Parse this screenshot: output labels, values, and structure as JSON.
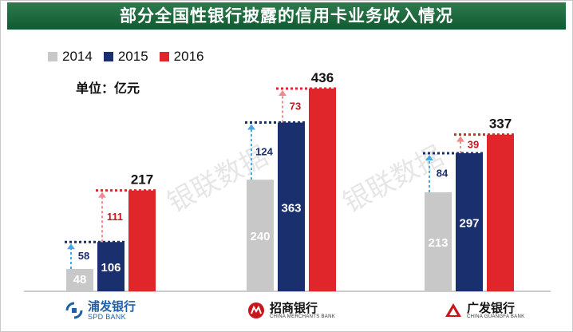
{
  "title": "部分全国性银行披露的信用卡业务收入情况",
  "unit": "单位：亿元",
  "watermark": "银联数据",
  "colors": {
    "2014": "#c8c8c8",
    "2015": "#1a2f6d",
    "2016": "#e0262b"
  },
  "chart_data": {
    "type": "bar",
    "categories": [
      "浦发银行",
      "招商银行",
      "广发银行"
    ],
    "series": [
      {
        "name": "2014",
        "values": [
          48,
          240,
          213
        ]
      },
      {
        "name": "2015",
        "values": [
          106,
          363,
          297
        ]
      },
      {
        "name": "2016",
        "values": [
          217,
          436,
          337
        ]
      }
    ],
    "increments": [
      {
        "category": "浦发银行",
        "from": "2014",
        "to": "2015",
        "value": 58
      },
      {
        "category": "浦发银行",
        "from": "2015",
        "to": "2016",
        "value": 111
      },
      {
        "category": "招商银行",
        "from": "2014",
        "to": "2015",
        "value": 124
      },
      {
        "category": "招商银行",
        "from": "2015",
        "to": "2016",
        "value": 73
      },
      {
        "category": "广发银行",
        "from": "2014",
        "to": "2015",
        "value": 84
      },
      {
        "category": "广发银行",
        "from": "2015",
        "to": "2016",
        "value": 39
      }
    ],
    "ylim": [
      0,
      500
    ],
    "legend": "top-left",
    "grid": false
  },
  "logos": [
    {
      "cn": "浦发银行",
      "en": "SPD BANK",
      "icon": "spdb-logo-icon"
    },
    {
      "cn": "招商银行",
      "en": "CHINA MERCHANTS BANK",
      "icon": "cmb-logo-icon"
    },
    {
      "cn": "广发银行",
      "en": "CHINA GUANGFA BANK",
      "icon": "cgb-logo-icon"
    }
  ]
}
